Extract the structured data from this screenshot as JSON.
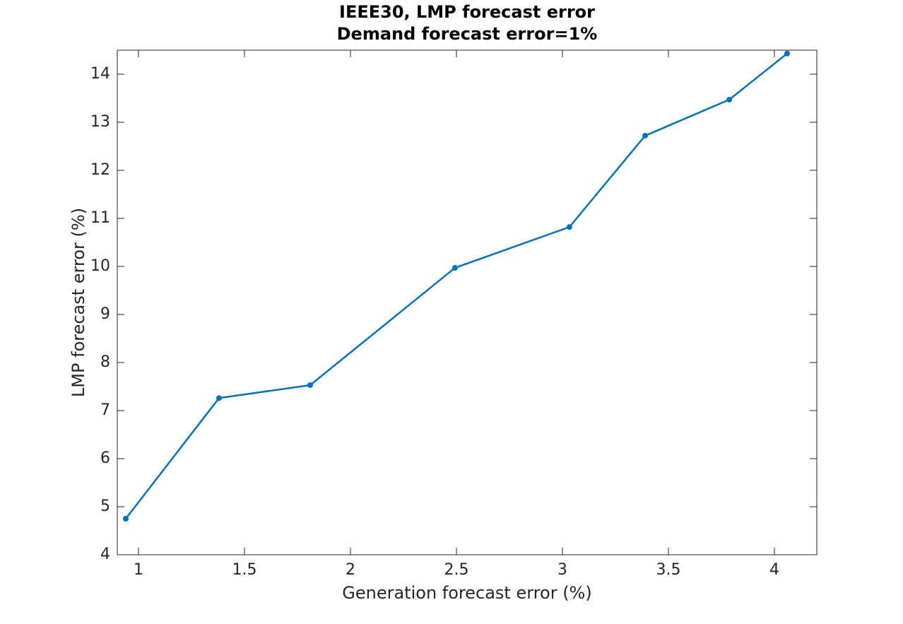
{
  "chart_data": {
    "type": "line",
    "title": "IEEE30, LMP forecast error",
    "subtitle": "Demand forecast error=1%",
    "x_label": "Generation forecast error (%)",
    "y_label": "LMP forecast error (%)",
    "x": [
      0.94,
      1.38,
      1.81,
      2.493,
      3.033,
      3.39,
      3.787,
      4.06
    ],
    "series": [
      {
        "name": "LMP forecast error",
        "color": "#0072bd",
        "values": [
          4.75,
          7.26,
          7.53,
          9.97,
          10.82,
          12.72,
          13.47,
          14.43
        ]
      }
    ],
    "xlim": [
      0.9,
      4.2
    ],
    "xticks": [
      1,
      1.5,
      2,
      2.5,
      3,
      3.5,
      4
    ],
    "ylim": [
      4,
      14.5
    ],
    "yticks": [
      4,
      5,
      6,
      7,
      8,
      9,
      10,
      11,
      12,
      13,
      14
    ],
    "grid": false
  }
}
